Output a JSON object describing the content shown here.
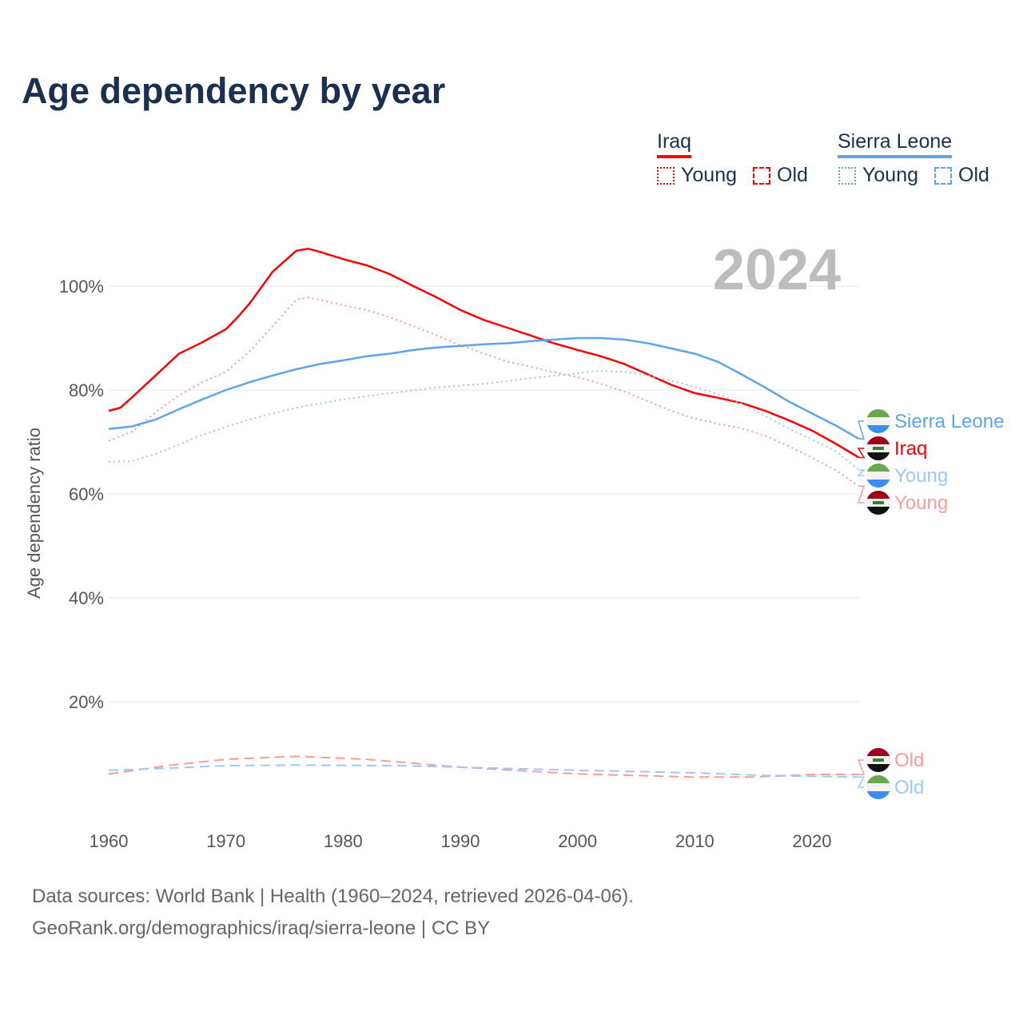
{
  "title": "Age dependency by year",
  "legend": {
    "groups": [
      {
        "name": "Iraq",
        "color": "#ff0000",
        "young": "Young",
        "old": "Old"
      },
      {
        "name": "Sierra Leone",
        "color": "#5da4ee",
        "young": "Young",
        "old": "Old"
      }
    ]
  },
  "year_label": "2024",
  "footer": {
    "line1": "Data sources: World Bank | Health (1960–2024, retrieved 2026-04-06).",
    "line2": "GeoRank.org/demographics/iraq/sierra-leone | CC BY"
  },
  "chart_data": {
    "type": "line",
    "title": "Age dependency by year",
    "xlabel": "",
    "ylabel": "Age dependency ratio",
    "xlim": [
      1960,
      2024
    ],
    "ylim": [
      0,
      110
    ],
    "xticks": [
      1960,
      1970,
      1980,
      1990,
      2000,
      2010,
      2020
    ],
    "yticks": [
      20,
      40,
      60,
      80,
      100
    ],
    "ytick_labels": [
      "20%",
      "40%",
      "60%",
      "80%",
      "100%"
    ],
    "grid": true,
    "series": [
      {
        "name": "Iraq",
        "end_label": "Iraq",
        "color": "#ff0000",
        "style": "solid",
        "x": [
          1960,
          1961,
          1962,
          1964,
          1966,
          1968,
          1970,
          1971,
          1972,
          1974,
          1976,
          1977,
          1978,
          1980,
          1982,
          1984,
          1986,
          1988,
          1990,
          1992,
          1994,
          1996,
          1998,
          2000,
          2002,
          2004,
          2006,
          2008,
          2010,
          2012,
          2014,
          2016,
          2018,
          2020,
          2022,
          2024
        ],
        "y": [
          76,
          76.6,
          78.6,
          82.8,
          87,
          89.2,
          91.7,
          94,
          96.6,
          102.8,
          106.8,
          107.2,
          106.6,
          105.2,
          104,
          102.3,
          100,
          97.8,
          95.4,
          93.5,
          92,
          90.5,
          89,
          87.7,
          86.5,
          85,
          83,
          81,
          79.4,
          78.5,
          77.5,
          76,
          74.2,
          72.2,
          69.7,
          67
        ]
      },
      {
        "name": "Iraq Young",
        "end_label": "Young",
        "color": "#ff9a9a",
        "style": "dotted",
        "x": [
          1960,
          1962,
          1964,
          1966,
          1968,
          1970,
          1972,
          1974,
          1976,
          1977,
          1978,
          1980,
          1982,
          1984,
          1986,
          1988,
          1990,
          1992,
          1994,
          1996,
          1998,
          2000,
          2002,
          2004,
          2006,
          2008,
          2010,
          2012,
          2014,
          2016,
          2018,
          2020,
          2022,
          2024
        ],
        "y": [
          70.2,
          72,
          75.7,
          79,
          81.5,
          83.5,
          87.4,
          92.3,
          97.4,
          97.8,
          97.4,
          96.3,
          95.4,
          94,
          92.3,
          90.5,
          88.6,
          87,
          85.5,
          84.5,
          83.4,
          82.5,
          81.2,
          79.7,
          77.8,
          76,
          74.5,
          73.5,
          72.6,
          71.2,
          69.2,
          67,
          64.6,
          61.5
        ]
      },
      {
        "name": "Iraq Old",
        "end_label": "Old",
        "color": "#ff9a9a",
        "style": "dashed",
        "x": [
          1960,
          1965,
          1970,
          1976,
          1982,
          1990,
          2000,
          2010,
          2015,
          2020,
          2024
        ],
        "y": [
          6.1,
          7.7,
          8.9,
          9.5,
          8.9,
          7.4,
          6.1,
          5.5,
          5.5,
          6,
          6
        ]
      },
      {
        "name": "Sierra Leone",
        "end_label": "Sierra Leone",
        "color": "#5da4ee",
        "style": "solid",
        "x": [
          1960,
          1962,
          1964,
          1966,
          1968,
          1970,
          1972,
          1974,
          1976,
          1978,
          1980,
          1982,
          1984,
          1986,
          1988,
          1990,
          1992,
          1994,
          1996,
          1998,
          2000,
          2002,
          2004,
          2006,
          2008,
          2010,
          2012,
          2014,
          2016,
          2018,
          2020,
          2022,
          2024
        ],
        "y": [
          72.5,
          73,
          74.3,
          76.3,
          78.2,
          80,
          81.5,
          82.8,
          84,
          85,
          85.7,
          86.5,
          87,
          87.7,
          88.2,
          88.5,
          88.8,
          89,
          89.4,
          89.7,
          90,
          90,
          89.7,
          89,
          88,
          87,
          85.4,
          83,
          80.5,
          77.8,
          75.5,
          73.2,
          70.6
        ]
      },
      {
        "name": "Sierra Leone Young",
        "end_label": "Young",
        "color": "#9ec8f5",
        "style": "dotted",
        "x": [
          1960,
          1962,
          1964,
          1966,
          1968,
          1970,
          1972,
          1974,
          1976,
          1980,
          1984,
          1988,
          1992,
          1996,
          2000,
          2002,
          2004,
          2006,
          2008,
          2010,
          2012,
          2014,
          2016,
          2018,
          2020,
          2022,
          2024
        ],
        "y": [
          66.2,
          66.3,
          67.7,
          69.5,
          71.4,
          72.9,
          74.3,
          75.5,
          76.6,
          78.2,
          79.4,
          80.5,
          81.2,
          82.3,
          83.2,
          83.7,
          83.5,
          82.8,
          81.8,
          80.6,
          79.2,
          77.4,
          75,
          72.6,
          70.5,
          68.3,
          64.6
        ]
      },
      {
        "name": "Sierra Leone Old",
        "end_label": "Old",
        "color": "#9ec8f5",
        "style": "dashed",
        "x": [
          1960,
          1965,
          1970,
          1976,
          1985,
          1990,
          2000,
          2010,
          2016,
          2024
        ],
        "y": [
          6.8,
          7.2,
          7.7,
          7.8,
          7.7,
          7.4,
          6.8,
          6.3,
          5.8,
          5.5
        ]
      }
    ]
  }
}
